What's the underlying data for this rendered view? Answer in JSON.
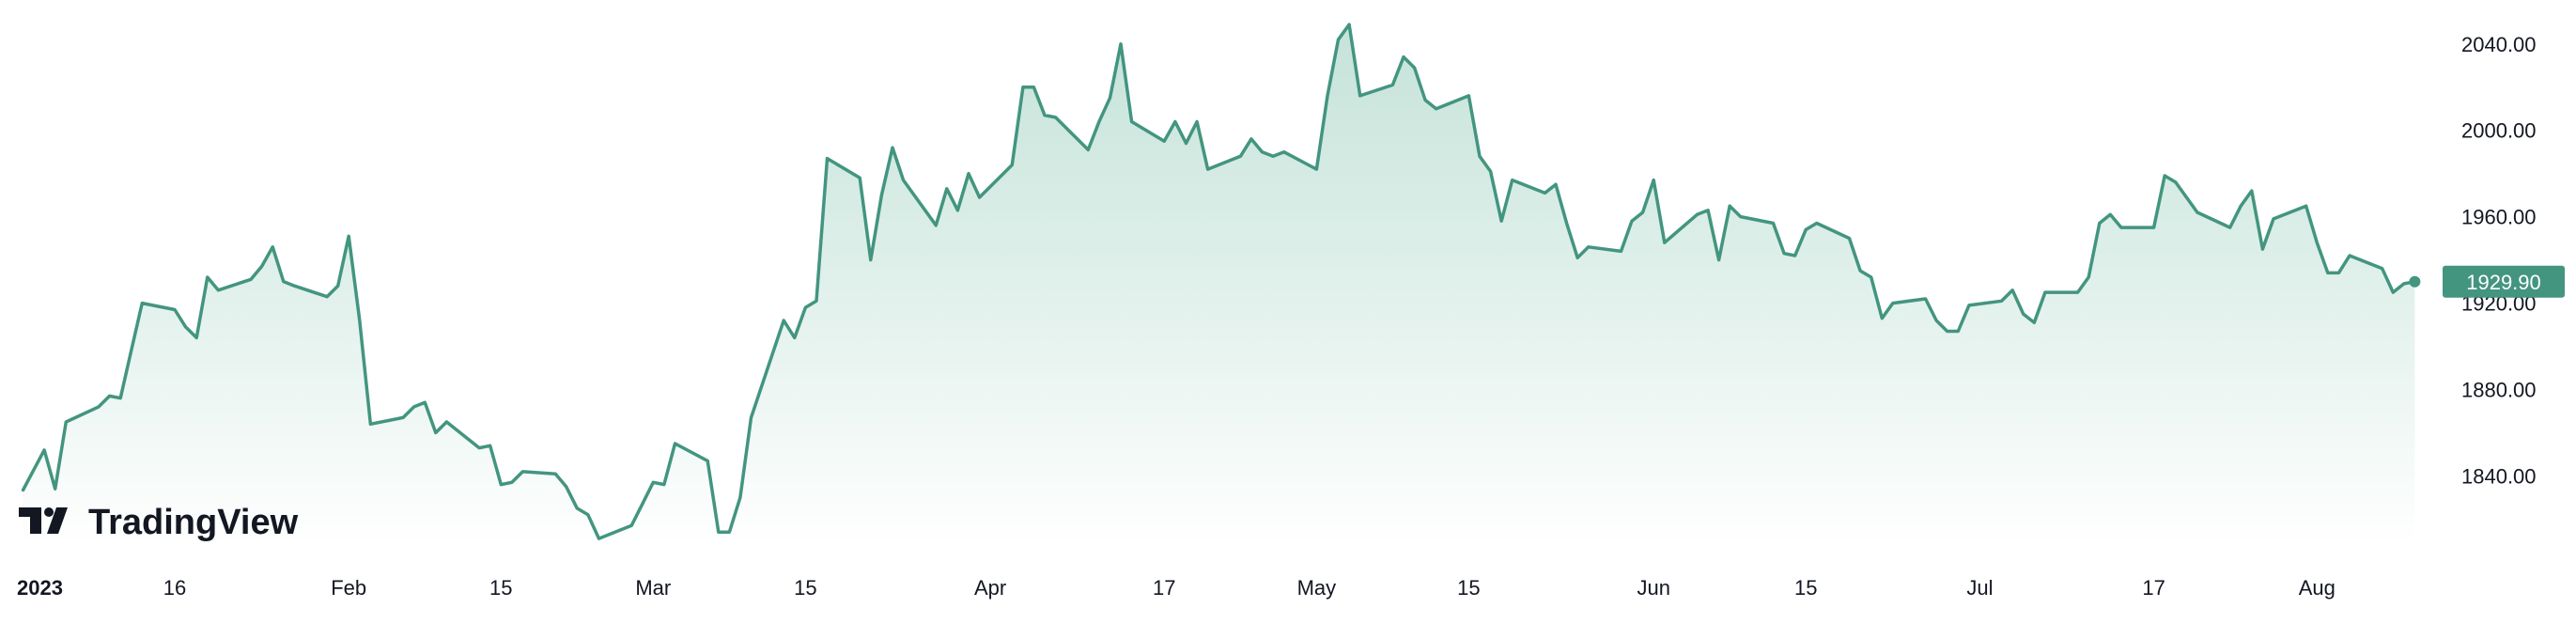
{
  "colors": {
    "line": "#43957f",
    "area_top": "#bfe0d5",
    "area_bottom": "#ffffff",
    "label_bg": "#43957f",
    "text": "#131722"
  },
  "brand": {
    "name": "TradingView"
  },
  "last_value_label": "1929.90",
  "chart_data": {
    "type": "area",
    "ylim": [
      1808,
      2056
    ],
    "y_ticks": [
      "2040.00",
      "2000.00",
      "1960.00",
      "1920.00",
      "1880.00",
      "1840.00"
    ],
    "x_ticks": [
      {
        "label": "2023",
        "x": "2023-01-02"
      },
      {
        "label": "16",
        "x": "2023-01-16"
      },
      {
        "label": "Feb",
        "x": "2023-02-01"
      },
      {
        "label": "15",
        "x": "2023-02-15"
      },
      {
        "label": "Mar",
        "x": "2023-03-01"
      },
      {
        "label": "15",
        "x": "2023-03-15"
      },
      {
        "label": "Apr",
        "x": "2023-04-01"
      },
      {
        "label": "17",
        "x": "2023-04-17"
      },
      {
        "label": "May",
        "x": "2023-05-01"
      },
      {
        "label": "15",
        "x": "2023-05-15"
      },
      {
        "label": "Jun",
        "x": "2023-06-01"
      },
      {
        "label": "15",
        "x": "2023-06-15"
      },
      {
        "label": "Jul",
        "x": "2023-07-01"
      },
      {
        "label": "17",
        "x": "2023-07-17"
      },
      {
        "label": "Aug",
        "x": "2023-08-01"
      }
    ],
    "x_range": [
      "2023-01-02",
      "2023-08-11"
    ],
    "series": [
      {
        "values": [
          {
            "x": "2023-01-02",
            "y": 1833
          },
          {
            "x": "2023-01-04",
            "y": 1852
          },
          {
            "x": "2023-01-05",
            "y": 1834
          },
          {
            "x": "2023-01-06",
            "y": 1865
          },
          {
            "x": "2023-01-09",
            "y": 1872
          },
          {
            "x": "2023-01-10",
            "y": 1877
          },
          {
            "x": "2023-01-11",
            "y": 1876
          },
          {
            "x": "2023-01-12",
            "y": 1898
          },
          {
            "x": "2023-01-13",
            "y": 1920
          },
          {
            "x": "2023-01-16",
            "y": 1917
          },
          {
            "x": "2023-01-17",
            "y": 1909
          },
          {
            "x": "2023-01-18",
            "y": 1904
          },
          {
            "x": "2023-01-19",
            "y": 1932
          },
          {
            "x": "2023-01-20",
            "y": 1926
          },
          {
            "x": "2023-01-23",
            "y": 1931
          },
          {
            "x": "2023-01-24",
            "y": 1937
          },
          {
            "x": "2023-01-25",
            "y": 1946
          },
          {
            "x": "2023-01-26",
            "y": 1930
          },
          {
            "x": "2023-01-27",
            "y": 1928
          },
          {
            "x": "2023-01-30",
            "y": 1923
          },
          {
            "x": "2023-01-31",
            "y": 1928
          },
          {
            "x": "2023-02-01",
            "y": 1951
          },
          {
            "x": "2023-02-02",
            "y": 1912
          },
          {
            "x": "2023-02-03",
            "y": 1864
          },
          {
            "x": "2023-02-06",
            "y": 1867
          },
          {
            "x": "2023-02-07",
            "y": 1872
          },
          {
            "x": "2023-02-08",
            "y": 1874
          },
          {
            "x": "2023-02-09",
            "y": 1860
          },
          {
            "x": "2023-02-10",
            "y": 1865
          },
          {
            "x": "2023-02-13",
            "y": 1853
          },
          {
            "x": "2023-02-14",
            "y": 1854
          },
          {
            "x": "2023-02-15",
            "y": 1836
          },
          {
            "x": "2023-02-16",
            "y": 1837
          },
          {
            "x": "2023-02-17",
            "y": 1842
          },
          {
            "x": "2023-02-20",
            "y": 1841
          },
          {
            "x": "2023-02-21",
            "y": 1835
          },
          {
            "x": "2023-02-22",
            "y": 1825
          },
          {
            "x": "2023-02-23",
            "y": 1822
          },
          {
            "x": "2023-02-24",
            "y": 1811
          },
          {
            "x": "2023-02-27",
            "y": 1817
          },
          {
            "x": "2023-02-28",
            "y": 1827
          },
          {
            "x": "2023-03-01",
            "y": 1837
          },
          {
            "x": "2023-03-02",
            "y": 1836
          },
          {
            "x": "2023-03-03",
            "y": 1855
          },
          {
            "x": "2023-03-06",
            "y": 1847
          },
          {
            "x": "2023-03-07",
            "y": 1814
          },
          {
            "x": "2023-03-08",
            "y": 1814
          },
          {
            "x": "2023-03-09",
            "y": 1830
          },
          {
            "x": "2023-03-10",
            "y": 1867
          },
          {
            "x": "2023-03-13",
            "y": 1912
          },
          {
            "x": "2023-03-14",
            "y": 1904
          },
          {
            "x": "2023-03-15",
            "y": 1918
          },
          {
            "x": "2023-03-16",
            "y": 1921
          },
          {
            "x": "2023-03-17",
            "y": 1987
          },
          {
            "x": "2023-03-20",
            "y": 1978
          },
          {
            "x": "2023-03-21",
            "y": 1940
          },
          {
            "x": "2023-03-22",
            "y": 1970
          },
          {
            "x": "2023-03-23",
            "y": 1992
          },
          {
            "x": "2023-03-24",
            "y": 1977
          },
          {
            "x": "2023-03-27",
            "y": 1956
          },
          {
            "x": "2023-03-28",
            "y": 1973
          },
          {
            "x": "2023-03-29",
            "y": 1963
          },
          {
            "x": "2023-03-30",
            "y": 1980
          },
          {
            "x": "2023-03-31",
            "y": 1969
          },
          {
            "x": "2023-04-03",
            "y": 1984
          },
          {
            "x": "2023-04-04",
            "y": 2020
          },
          {
            "x": "2023-04-05",
            "y": 2020
          },
          {
            "x": "2023-04-06",
            "y": 2007
          },
          {
            "x": "2023-04-07",
            "y": 2006
          },
          {
            "x": "2023-04-10",
            "y": 1991
          },
          {
            "x": "2023-04-11",
            "y": 2004
          },
          {
            "x": "2023-04-12",
            "y": 2015
          },
          {
            "x": "2023-04-13",
            "y": 2040
          },
          {
            "x": "2023-04-14",
            "y": 2004
          },
          {
            "x": "2023-04-17",
            "y": 1995
          },
          {
            "x": "2023-04-18",
            "y": 2004
          },
          {
            "x": "2023-04-19",
            "y": 1994
          },
          {
            "x": "2023-04-20",
            "y": 2004
          },
          {
            "x": "2023-04-21",
            "y": 1982
          },
          {
            "x": "2023-04-24",
            "y": 1988
          },
          {
            "x": "2023-04-25",
            "y": 1996
          },
          {
            "x": "2023-04-26",
            "y": 1990
          },
          {
            "x": "2023-04-27",
            "y": 1988
          },
          {
            "x": "2023-04-28",
            "y": 1990
          },
          {
            "x": "2023-05-01",
            "y": 1982
          },
          {
            "x": "2023-05-02",
            "y": 2016
          },
          {
            "x": "2023-05-03",
            "y": 2042
          },
          {
            "x": "2023-05-04",
            "y": 2049
          },
          {
            "x": "2023-05-05",
            "y": 2016
          },
          {
            "x": "2023-05-08",
            "y": 2021
          },
          {
            "x": "2023-05-09",
            "y": 2034
          },
          {
            "x": "2023-05-10",
            "y": 2029
          },
          {
            "x": "2023-05-11",
            "y": 2014
          },
          {
            "x": "2023-05-12",
            "y": 2010
          },
          {
            "x": "2023-05-15",
            "y": 2016
          },
          {
            "x": "2023-05-16",
            "y": 1988
          },
          {
            "x": "2023-05-17",
            "y": 1981
          },
          {
            "x": "2023-05-18",
            "y": 1958
          },
          {
            "x": "2023-05-19",
            "y": 1977
          },
          {
            "x": "2023-05-22",
            "y": 1971
          },
          {
            "x": "2023-05-23",
            "y": 1975
          },
          {
            "x": "2023-05-24",
            "y": 1957
          },
          {
            "x": "2023-05-25",
            "y": 1941
          },
          {
            "x": "2023-05-26",
            "y": 1946
          },
          {
            "x": "2023-05-29",
            "y": 1944
          },
          {
            "x": "2023-05-30",
            "y": 1958
          },
          {
            "x": "2023-05-31",
            "y": 1962
          },
          {
            "x": "2023-06-01",
            "y": 1977
          },
          {
            "x": "2023-06-02",
            "y": 1948
          },
          {
            "x": "2023-06-05",
            "y": 1961
          },
          {
            "x": "2023-06-06",
            "y": 1963
          },
          {
            "x": "2023-06-07",
            "y": 1940
          },
          {
            "x": "2023-06-08",
            "y": 1965
          },
          {
            "x": "2023-06-09",
            "y": 1960
          },
          {
            "x": "2023-06-12",
            "y": 1957
          },
          {
            "x": "2023-06-13",
            "y": 1943
          },
          {
            "x": "2023-06-14",
            "y": 1942
          },
          {
            "x": "2023-06-15",
            "y": 1954
          },
          {
            "x": "2023-06-16",
            "y": 1957
          },
          {
            "x": "2023-06-19",
            "y": 1950
          },
          {
            "x": "2023-06-20",
            "y": 1935
          },
          {
            "x": "2023-06-21",
            "y": 1932
          },
          {
            "x": "2023-06-22",
            "y": 1913
          },
          {
            "x": "2023-06-23",
            "y": 1920
          },
          {
            "x": "2023-06-26",
            "y": 1922
          },
          {
            "x": "2023-06-27",
            "y": 1912
          },
          {
            "x": "2023-06-28",
            "y": 1907
          },
          {
            "x": "2023-06-29",
            "y": 1907
          },
          {
            "x": "2023-06-30",
            "y": 1919
          },
          {
            "x": "2023-07-03",
            "y": 1921
          },
          {
            "x": "2023-07-04",
            "y": 1926
          },
          {
            "x": "2023-07-05",
            "y": 1915
          },
          {
            "x": "2023-07-06",
            "y": 1911
          },
          {
            "x": "2023-07-07",
            "y": 1925
          },
          {
            "x": "2023-07-10",
            "y": 1925
          },
          {
            "x": "2023-07-11",
            "y": 1932
          },
          {
            "x": "2023-07-12",
            "y": 1957
          },
          {
            "x": "2023-07-13",
            "y": 1961
          },
          {
            "x": "2023-07-14",
            "y": 1955
          },
          {
            "x": "2023-07-17",
            "y": 1955
          },
          {
            "x": "2023-07-18",
            "y": 1979
          },
          {
            "x": "2023-07-19",
            "y": 1976
          },
          {
            "x": "2023-07-20",
            "y": 1969
          },
          {
            "x": "2023-07-21",
            "y": 1962
          },
          {
            "x": "2023-07-24",
            "y": 1955
          },
          {
            "x": "2023-07-25",
            "y": 1965
          },
          {
            "x": "2023-07-26",
            "y": 1972
          },
          {
            "x": "2023-07-27",
            "y": 1945
          },
          {
            "x": "2023-07-28",
            "y": 1959
          },
          {
            "x": "2023-07-31",
            "y": 1965
          },
          {
            "x": "2023-08-01",
            "y": 1948
          },
          {
            "x": "2023-08-02",
            "y": 1934
          },
          {
            "x": "2023-08-03",
            "y": 1934
          },
          {
            "x": "2023-08-04",
            "y": 1942
          },
          {
            "x": "2023-08-07",
            "y": 1936
          },
          {
            "x": "2023-08-08",
            "y": 1925
          },
          {
            "x": "2023-08-09",
            "y": 1929
          },
          {
            "x": "2023-08-10",
            "y": 1929.9
          }
        ]
      }
    ]
  }
}
